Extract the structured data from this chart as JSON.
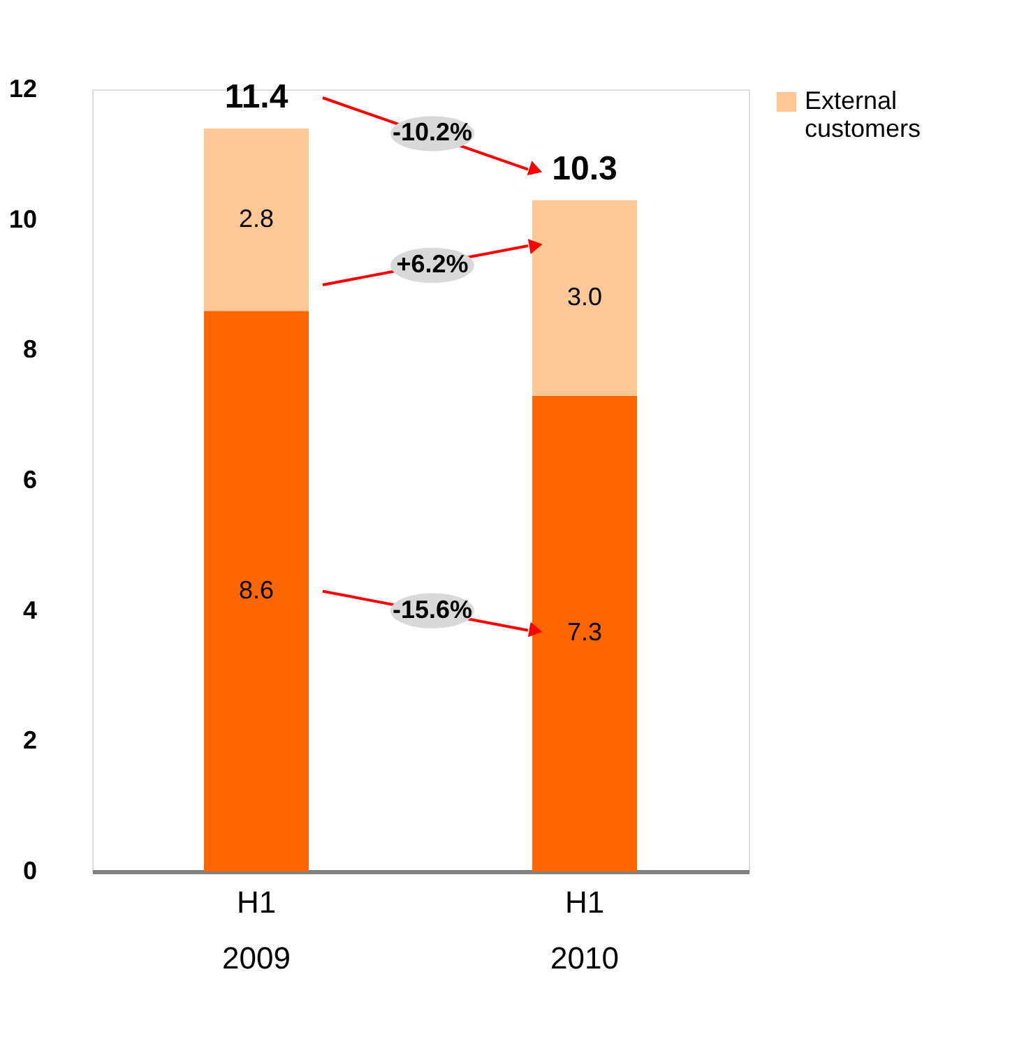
{
  "chart_data": {
    "type": "bar",
    "stacked": true,
    "categories": [
      "H1 2009",
      "H1 2010"
    ],
    "series": [
      {
        "name": null,
        "color": "#ff6600",
        "values": [
          8.6,
          7.3
        ],
        "value_labels": [
          "8.6",
          "7.3"
        ]
      },
      {
        "name": "External customers",
        "color": "#ffc896",
        "values": [
          2.8,
          3.0
        ],
        "value_labels": [
          "2.8",
          "3.0"
        ]
      }
    ],
    "totals": [
      "11.4",
      "10.3"
    ],
    "ylim": [
      0,
      12
    ],
    "yticks": [
      0,
      2,
      4,
      6,
      8,
      10,
      12
    ],
    "grid": false,
    "legend": "right",
    "annotations": [
      "-10.2%",
      "+6.2%",
      "-15.6%"
    ]
  }
}
